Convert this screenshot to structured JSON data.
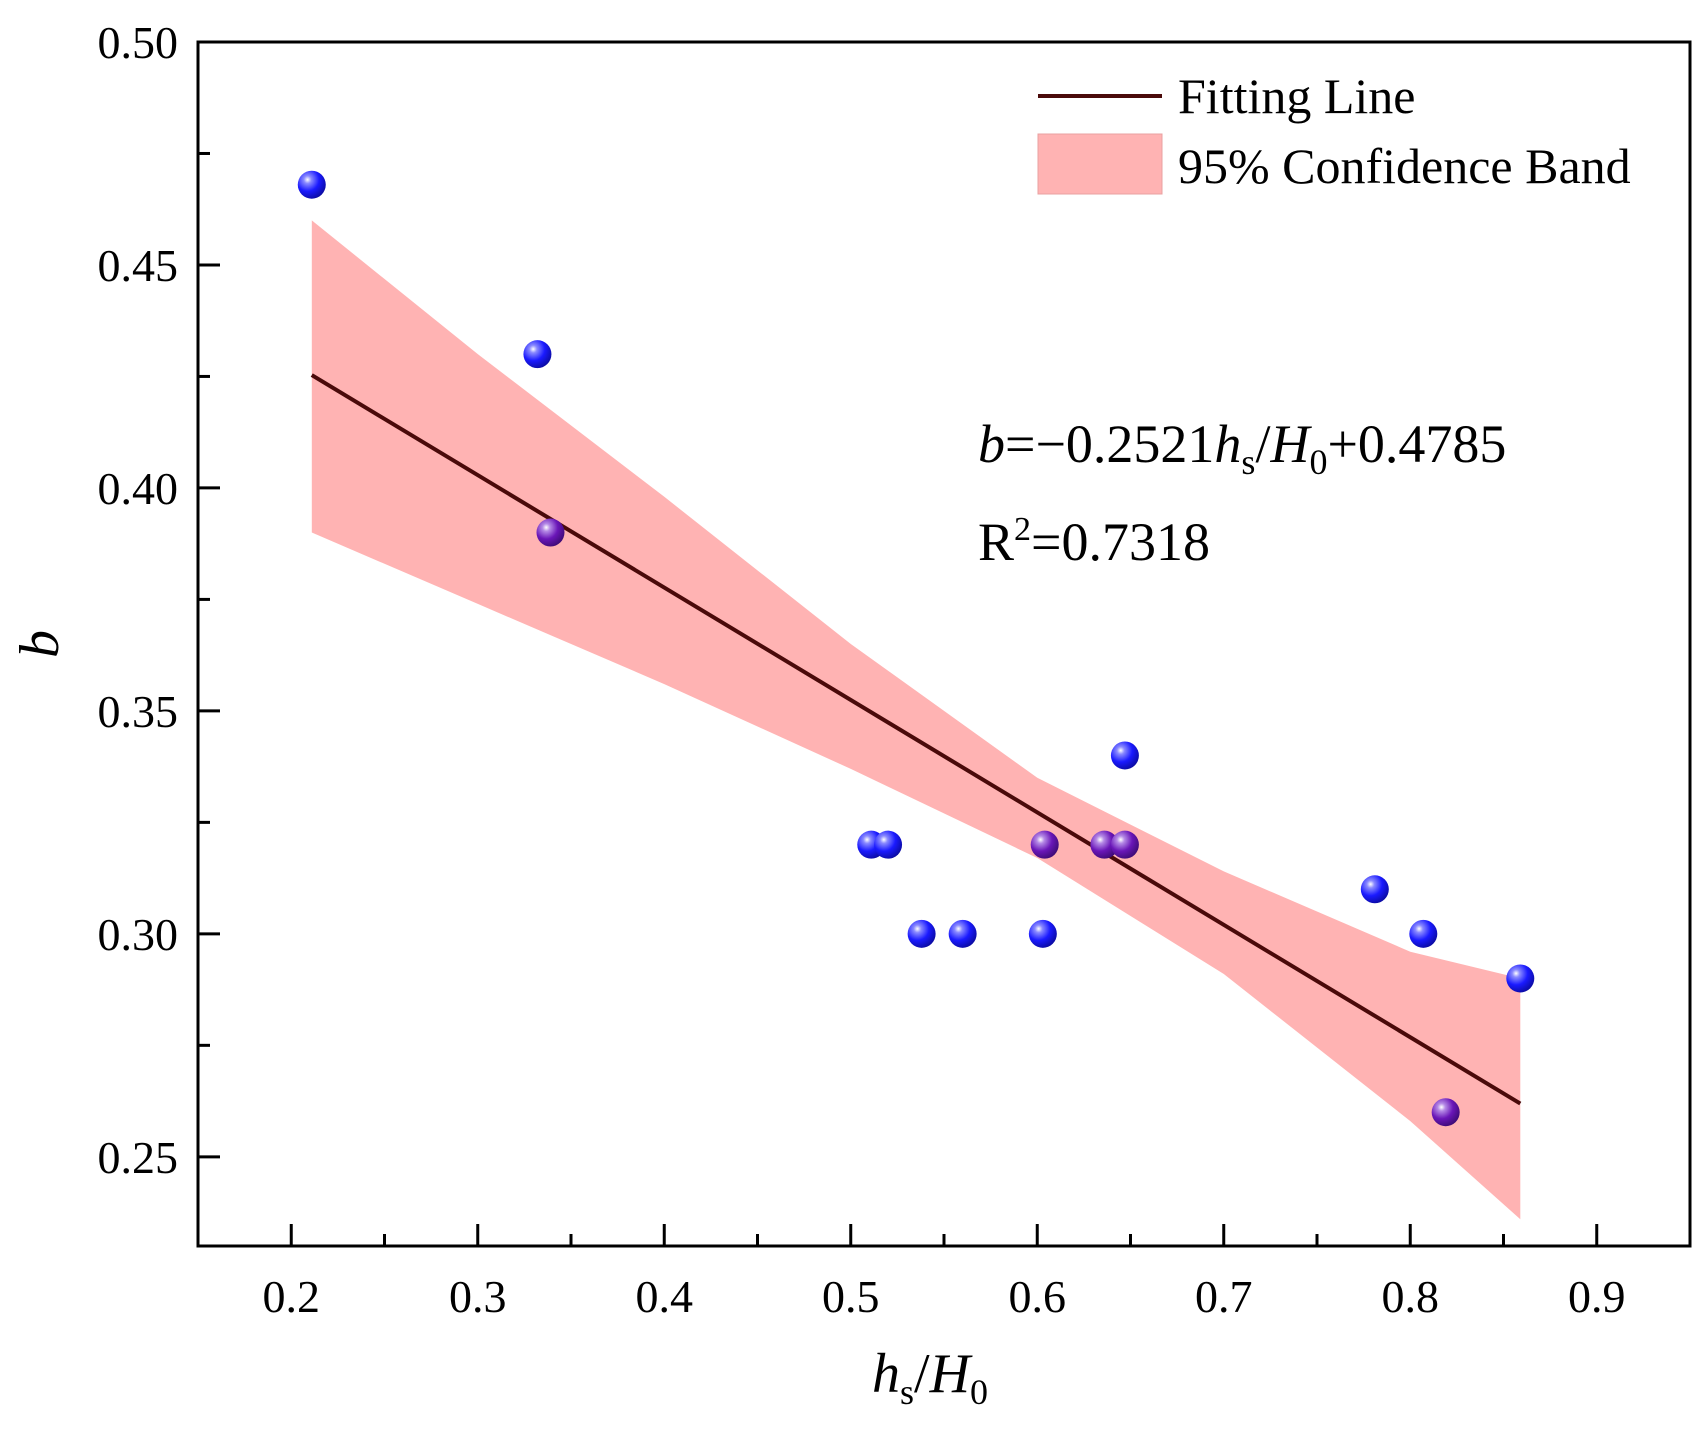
{
  "chart_data": {
    "type": "scatter",
    "title": "",
    "xlabel": {
      "main": "h",
      "main_sub": "s",
      "sep": "/",
      "denom": "H",
      "denom_sub": "0"
    },
    "ylabel": "b",
    "xlim": [
      0.15,
      0.95
    ],
    "ylim": [
      0.23,
      0.5
    ],
    "xticks": [
      0.2,
      0.3,
      0.4,
      0.5,
      0.6,
      0.7,
      0.8,
      0.9
    ],
    "xtick_labels": [
      "0.2",
      "0.3",
      "0.4",
      "0.5",
      "0.6",
      "0.7",
      "0.8",
      "0.9"
    ],
    "yticks": [
      0.25,
      0.3,
      0.35,
      0.4,
      0.45,
      0.5
    ],
    "ytick_labels": [
      "0.25",
      "0.30",
      "0.35",
      "0.40",
      "0.45",
      "0.50"
    ],
    "series": [
      {
        "name": "data-blue",
        "color": "#1a1aff",
        "points": [
          {
            "x": 0.211,
            "y": 0.468
          },
          {
            "x": 0.332,
            "y": 0.43
          },
          {
            "x": 0.511,
            "y": 0.32
          },
          {
            "x": 0.52,
            "y": 0.32
          },
          {
            "x": 0.538,
            "y": 0.3
          },
          {
            "x": 0.56,
            "y": 0.3
          },
          {
            "x": 0.603,
            "y": 0.3
          },
          {
            "x": 0.647,
            "y": 0.34
          },
          {
            "x": 0.781,
            "y": 0.31
          },
          {
            "x": 0.807,
            "y": 0.3
          },
          {
            "x": 0.859,
            "y": 0.29
          }
        ]
      },
      {
        "name": "data-purple",
        "color": "#6a16b8",
        "points": [
          {
            "x": 0.339,
            "y": 0.39
          },
          {
            "x": 0.604,
            "y": 0.32
          },
          {
            "x": 0.636,
            "y": 0.32
          },
          {
            "x": 0.647,
            "y": 0.32
          },
          {
            "x": 0.819,
            "y": 0.26
          }
        ]
      }
    ],
    "fit": {
      "name": "Fitting Line",
      "slope": -0.2521,
      "intercept": 0.4785,
      "x_range": [
        0.211,
        0.859
      ],
      "color": "#4a0a0a"
    },
    "confidence_band": {
      "name": "95% Confidence Band",
      "color": "#ffb3b3",
      "x": [
        0.211,
        0.3,
        0.4,
        0.5,
        0.6,
        0.7,
        0.8,
        0.859
      ],
      "upper": [
        0.46,
        0.43,
        0.398,
        0.365,
        0.335,
        0.314,
        0.296,
        0.29
      ],
      "lower": [
        0.39,
        0.374,
        0.356,
        0.337,
        0.317,
        0.291,
        0.258,
        0.236
      ]
    },
    "legend": {
      "position": "top-right",
      "items": [
        {
          "label": "Fitting Line",
          "kind": "line"
        },
        {
          "label": "95% Confidence Band",
          "kind": "band"
        }
      ]
    },
    "annotations": {
      "equation": {
        "var": "b",
        "text1": "=−0.2521",
        "h": "h",
        "h_sub": "s",
        "slash": "/",
        "H": "H",
        "H_sub": "0",
        "text2": "+0.4785"
      },
      "r2": {
        "R": "R",
        "sup": "2",
        "value": "=0.7318"
      }
    }
  }
}
